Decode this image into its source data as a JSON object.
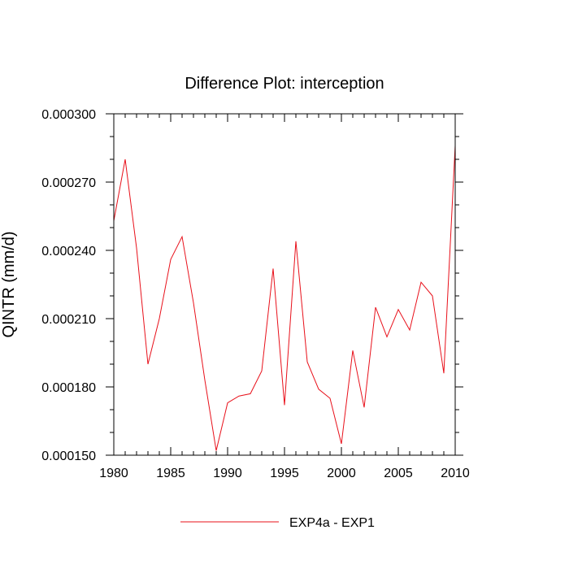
{
  "chart_data": {
    "type": "line",
    "title": "Difference Plot: interception",
    "ylabel": "QINTR  (mm/d)",
    "xlabel": "",
    "xlim": [
      1980,
      2010
    ],
    "ylim": [
      0.00015,
      0.0003
    ],
    "x_ticks": [
      1980,
      1985,
      1990,
      1995,
      2000,
      2005,
      2010
    ],
    "x_tick_labels": [
      "1980",
      "1985",
      "1990",
      "1995",
      "2000",
      "2005",
      "2010"
    ],
    "y_ticks": [
      0.00015,
      0.00018,
      0.00021,
      0.00024,
      0.00027,
      0.0003
    ],
    "y_tick_labels": [
      "0.000150",
      "0.000180",
      "0.000210",
      "0.000240",
      "0.000270",
      "0.000300"
    ],
    "grid": false,
    "legend_position": "bottom-center",
    "series": [
      {
        "name": "EXP4a - EXP1",
        "color": "#e8101a",
        "x": [
          1980,
          1981,
          1982,
          1983,
          1984,
          1985,
          1986,
          1987,
          1988,
          1989,
          1990,
          1991,
          1992,
          1993,
          1994,
          1995,
          1996,
          1997,
          1998,
          1999,
          2000,
          2001,
          2002,
          2003,
          2004,
          2005,
          2006,
          2007,
          2008,
          2009,
          2010
        ],
        "values": [
          0.000253,
          0.00028,
          0.000241,
          0.00019,
          0.00021,
          0.000236,
          0.000246,
          0.000217,
          0.000183,
          0.000152,
          0.000173,
          0.000176,
          0.000177,
          0.000187,
          0.000232,
          0.000172,
          0.000244,
          0.000191,
          0.000179,
          0.000175,
          0.000155,
          0.000196,
          0.000171,
          0.000215,
          0.000202,
          0.000214,
          0.000205,
          0.000226,
          0.00022,
          0.000186,
          0.000286
        ]
      }
    ]
  }
}
